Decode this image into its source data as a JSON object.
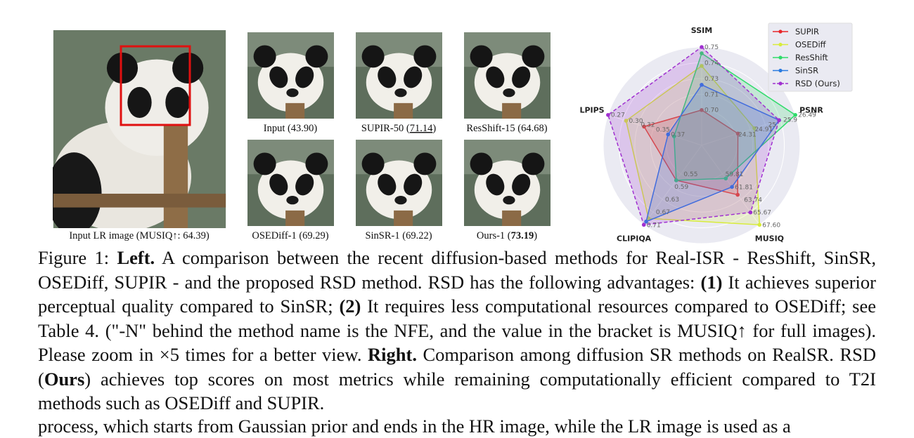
{
  "figure": {
    "panels": [
      {
        "parts": [
          "Input LR image (MUSIQ↑: 64.39)"
        ]
      },
      {
        "parts": [
          "Input (43.90)"
        ]
      },
      {
        "parts": [
          "SUPIR-50 (",
          "71.14",
          ")"
        ]
      },
      {
        "parts": [
          "ResShift-15 (64.68)"
        ]
      },
      {
        "parts": [
          "OSEDiff-1 (69.29)"
        ]
      },
      {
        "parts": [
          "SinSR-1 (69.22)"
        ]
      },
      {
        "parts": [
          "Ours-1 (",
          "73.19",
          ")"
        ]
      }
    ]
  },
  "chart_data": {
    "type": "radar",
    "axes": [
      {
        "name": "SSIM",
        "lim": [
          0.672,
          0.75
        ],
        "ticks": [
          {
            "value": 0.7,
            "label": "0.70"
          },
          {
            "value": 0.7125,
            "label": "0.71"
          },
          {
            "value": 0.725,
            "label": "0.73"
          },
          {
            "value": 0.7375,
            "label": "0.74"
          },
          {
            "value": 0.75,
            "label": "0.75"
          }
        ]
      },
      {
        "name": "PSNR",
        "lim": [
          23.08,
          26.49
        ],
        "ticks": [
          {
            "value": 24.31,
            "label": "24.31"
          },
          {
            "value": 24.91,
            "label": "24.91"
          },
          {
            "value": 25.4,
            "label": "25"
          },
          {
            "value": 25.95,
            "label": "25.9"
          },
          {
            "value": 26.49,
            "label": "26.49"
          }
        ]
      },
      {
        "name": "MUSIQ",
        "lim": [
          55.42,
          67.6
        ],
        "ticks": [
          {
            "value": 59.81,
            "label": "59.81"
          },
          {
            "value": 61.81,
            "label": "61.81"
          },
          {
            "value": 63.74,
            "label": "63.74"
          },
          {
            "value": 65.67,
            "label": "65.67"
          },
          {
            "value": 67.6,
            "label": "67.60"
          }
        ]
      },
      {
        "name": "CLIPIQA",
        "lim": [
          0.46,
          0.71
        ],
        "ticks": [
          {
            "value": 0.55,
            "label": "0.55"
          },
          {
            "value": 0.59,
            "label": "0.59"
          },
          {
            "value": 0.63,
            "label": "0.63"
          },
          {
            "value": 0.67,
            "label": "0.67"
          },
          {
            "value": 0.71,
            "label": "0.71"
          }
        ]
      },
      {
        "name": "LPIPS",
        "lim": [
          0.426,
          0.27
        ],
        "ticks": [
          {
            "value": 0.37,
            "label": "0.37"
          },
          {
            "value": 0.345,
            "label": "0.35"
          },
          {
            "value": 0.32,
            "label": "0.32"
          },
          {
            "value": 0.3,
            "label": "0.30"
          },
          {
            "value": 0.27,
            "label": "0.27"
          }
        ]
      }
    ],
    "series": [
      {
        "name": "SUPIR",
        "color": "#e8262a",
        "values": [
          0.7,
          24.4,
          63.0,
          0.57,
          0.33
        ]
      },
      {
        "name": "OSEDiff",
        "color": "#d8ec3a",
        "values": [
          0.735,
          25.0,
          67.6,
          0.69,
          0.3
        ]
      },
      {
        "name": "ResShift",
        "color": "#2fdc6a",
        "values": [
          0.745,
          26.49,
          60.5,
          0.57,
          0.38
        ]
      },
      {
        "name": "SinSR",
        "color": "#2a7be0",
        "values": [
          0.72,
          25.9,
          61.8,
          0.7,
          0.37
        ]
      },
      {
        "name": "RSD (Ours)",
        "color": "#a030d0",
        "dashed": true,
        "values": [
          0.75,
          25.9,
          65.7,
          0.71,
          0.27
        ]
      }
    ]
  },
  "caption": [
    {
      "text": "Figure 1: "
    },
    {
      "text": "Left.",
      "bold": true
    },
    {
      "text": " A comparison between the recent diffusion-based methods for Real-ISR - ResShift, SinSR, OSEDiff, SUPIR - and the proposed RSD method. RSD has the following advantages: "
    },
    {
      "text": "(1)",
      "bold": true
    },
    {
      "text": " It achieves superior perceptual quality compared to SinSR; "
    },
    {
      "text": "(2)",
      "bold": true
    },
    {
      "text": " It requires less computational resources compared to OSEDiff; see Table 4. (\"-N\" behind the method name is the NFE, and the value in the bracket is MUSIQ↑ for full images). Please zoom in ×5 times for a better view. "
    },
    {
      "text": "Right.",
      "bold": true
    },
    {
      "text": " Comparison among diffusion SR methods on RealSR. RSD ("
    },
    {
      "text": "Ours",
      "bold": true
    },
    {
      "text": ") achieves top scores on most metrics while remaining computationally efficient compared to T2I methods such as OSEDiff and SUPIR."
    }
  ],
  "body": "process, which starts from Gaussian prior and ends in the HR image, while the LR image is used as a"
}
